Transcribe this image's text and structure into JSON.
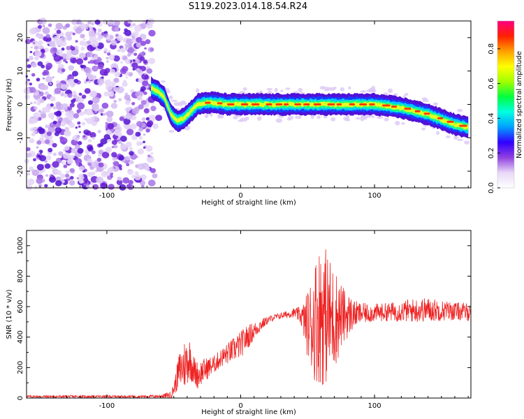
{
  "chart_data": [
    {
      "type": "heatmap",
      "title": "S119.2023.014.18.54.R24",
      "xlabel": "Height of straight line (km)",
      "ylabel": "Frequency (Hz)",
      "xlim": [
        -160,
        172
      ],
      "ylim": [
        -25,
        25
      ],
      "xticks": [
        -100,
        0,
        100
      ],
      "yticks": [
        -20,
        -10,
        0,
        10,
        20
      ],
      "tick_labels_x": [
        "-100",
        "0",
        "100"
      ],
      "tick_labels_y": [
        "-20",
        "-10",
        "0",
        "10",
        "20"
      ],
      "noise_region_x": [
        -160,
        -66
      ],
      "signal_ridge": {
        "x": [
          -67,
          -62,
          -57,
          -52,
          -47,
          -42,
          -37,
          -32,
          -27,
          -20,
          -10,
          0,
          10,
          20,
          30,
          40,
          50,
          60,
          70,
          80,
          90,
          100,
          110,
          120,
          130,
          140,
          150,
          160,
          170
        ],
        "frequency": [
          5,
          4,
          2,
          -3,
          -5,
          -4,
          -2,
          0,
          0.5,
          0.5,
          0,
          0,
          0,
          0,
          0,
          0,
          0,
          0,
          0,
          0,
          0,
          0,
          -0.5,
          -1,
          -2,
          -3,
          -4.5,
          -6,
          -7
        ]
      },
      "colorbar": {
        "label": "Normalized spectral amplitude",
        "range": [
          0,
          0.96
        ],
        "ticks": [
          0.0,
          0.2,
          0.4,
          0.6,
          0.8
        ],
        "tick_labels": [
          "0.0",
          "0.2",
          "0.4",
          "0.6",
          "0.8"
        ],
        "colors": [
          "#ffffff",
          "#e8d8f8",
          "#9040e0",
          "#3000ff",
          "#00a0ff",
          "#00ffe0",
          "#00ff40",
          "#a0ff00",
          "#ffff00",
          "#ffa000",
          "#ff2000",
          "#ff0080"
        ]
      },
      "colors": {
        "ridge_peak": "#ff3a00",
        "noise": "#8a2be2"
      }
    },
    {
      "type": "line",
      "xlabel": "Height of straight line (km)",
      "ylabel": "SNR (10 * v/v)",
      "xlim": [
        -160,
        172
      ],
      "ylim": [
        0,
        1100
      ],
      "xticks": [
        -100,
        0,
        100
      ],
      "yticks": [
        0,
        200,
        400,
        600,
        800,
        1000
      ],
      "tick_labels_x": [
        "-100",
        "0",
        "100"
      ],
      "tick_labels_y": [
        "0",
        "200",
        "400",
        "600",
        "800",
        "1000"
      ],
      "series": [
        {
          "color": "#ee2222",
          "x": [
            -160,
            -120,
            -80,
            -60,
            -52,
            -50,
            -46,
            -42,
            -38,
            -35,
            -32,
            -28,
            -24,
            -20,
            -15,
            -10,
            -5,
            0,
            5,
            10,
            15,
            20,
            25,
            30,
            35,
            40,
            45,
            48,
            52,
            56,
            60,
            64,
            68,
            72,
            76,
            80,
            85,
            90,
            100,
            110,
            120,
            130,
            140,
            150,
            160,
            172
          ],
          "mean": [
            10,
            10,
            10,
            12,
            20,
            60,
            180,
            220,
            260,
            180,
            150,
            180,
            200,
            220,
            260,
            290,
            320,
            350,
            400,
            440,
            480,
            510,
            530,
            540,
            550,
            560,
            540,
            500,
            480,
            520,
            560,
            540,
            520,
            530,
            540,
            545,
            550,
            555,
            560,
            565,
            570,
            575,
            580,
            575,
            570,
            565
          ],
          "amp": [
            8,
            8,
            8,
            10,
            25,
            40,
            120,
            170,
            140,
            100,
            90,
            80,
            70,
            60,
            60,
            70,
            80,
            90,
            80,
            60,
            40,
            25,
            20,
            20,
            25,
            30,
            60,
            150,
            300,
            420,
            480,
            450,
            380,
            300,
            200,
            150,
            90,
            70,
            60,
            60,
            70,
            80,
            80,
            70,
            60,
            60
          ]
        }
      ]
    }
  ]
}
